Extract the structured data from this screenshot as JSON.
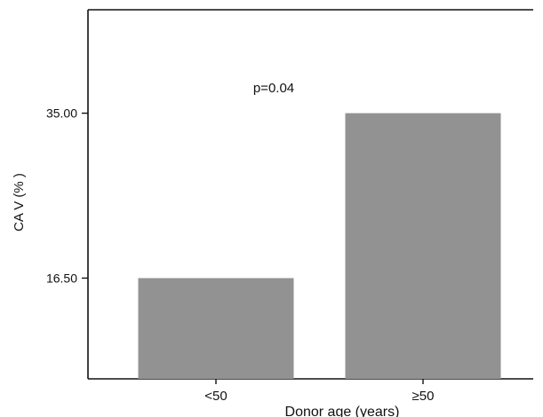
{
  "chart_data": {
    "type": "bar",
    "categories": [
      "<50",
      "≥50"
    ],
    "values": [
      16.5,
      35.0
    ],
    "ylabel": "CA V (% )",
    "xlabel": "Donor age (years)",
    "yticks": [
      16.5,
      35.0
    ],
    "ytick_labels": [
      "16.50",
      "35.00"
    ],
    "ylim": [
      5.2,
      46.6
    ],
    "annotation": "p=0.04",
    "bar_color": "#929292",
    "grid": false,
    "legend": "none"
  }
}
